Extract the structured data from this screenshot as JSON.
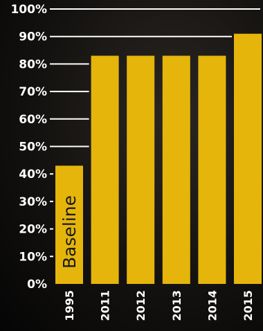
{
  "chart_data": {
    "type": "bar",
    "categories": [
      "1995",
      "2011",
      "2012",
      "2013",
      "2014",
      "2015"
    ],
    "values": [
      43,
      83,
      83,
      83,
      83,
      91
    ],
    "bar_annotations": [
      "Baseline",
      "",
      "",
      "",
      "",
      ""
    ],
    "yticks": [
      "0%",
      "10%",
      "20%",
      "30%",
      "40%",
      "50%",
      "60%",
      "70%",
      "80%",
      "90%",
      "100%"
    ],
    "ylim": [
      0,
      100
    ],
    "grid": true,
    "bar_color": "#E5B50B",
    "background_color": "#141210"
  }
}
